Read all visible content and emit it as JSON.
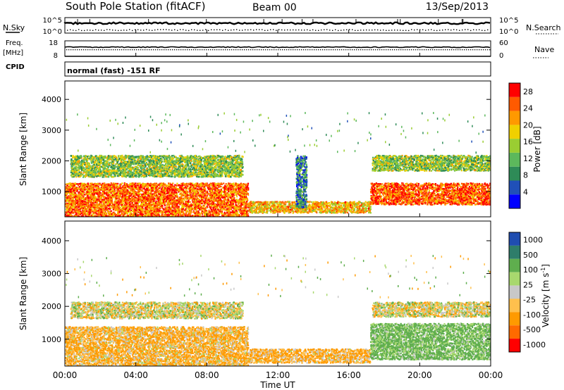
{
  "header": {
    "station": "South Pole Station (fitACF)",
    "beam": "Beam 00",
    "date": "13/Sep/2013"
  },
  "strip_labels": {
    "nsky": "N.Sky",
    "nsky_hi": "10^5",
    "nsky_lo": "10^0",
    "nsearch": "N.Search",
    "nsearch_hi": "10^5",
    "nsearch_lo": "10^0",
    "freq": "Freq.",
    "freq_unit": "[MHz]",
    "freq_hi": "18",
    "freq_lo": "8",
    "nave": "Nave",
    "nave_hi": "60",
    "nave_lo": "0",
    "cpid": "CPID",
    "cpid_text": "normal (fast) -151 RF"
  },
  "colors": {
    "power": [
      "#0000ff",
      "#2050b8",
      "#2e8b57",
      "#5cb85c",
      "#9acd32",
      "#f0d000",
      "#ff9900",
      "#ff5a00",
      "#ff0000"
    ],
    "velocity": [
      "#ff0000",
      "#ff6a00",
      "#ff9a00",
      "#ffc04d",
      "#c8c8c8",
      "#a8d86e",
      "#5fae4e",
      "#2e7d6a",
      "#1f4db0"
    ]
  },
  "chart_data": [
    {
      "type": "heatmap",
      "name": "power",
      "ylabel": "Slant Range [km]",
      "xlabel": "",
      "xlim": [
        "00:00",
        "24:00"
      ],
      "ylim": [
        180,
        4600
      ],
      "x_ticks": [
        "00:00",
        "04:00",
        "08:00",
        "12:00",
        "16:00",
        "20:00",
        "00:00"
      ],
      "y_ticks": [
        1000,
        2000,
        3000,
        4000
      ],
      "colorbar": {
        "label": "Power [dB]",
        "ticks": [
          "4",
          "8",
          "12",
          "16",
          "20",
          "24",
          "28"
        ],
        "range": [
          0,
          30
        ]
      },
      "echo_bands": [
        {
          "t0": 0.0,
          "t1": 10.3,
          "r0": 200,
          "r1": 1300,
          "level": 24
        },
        {
          "t0": 0.3,
          "t1": 10.0,
          "r0": 1500,
          "r1": 2200,
          "level": 14
        },
        {
          "t0": 10.3,
          "t1": 17.2,
          "r0": 330,
          "r1": 700,
          "level": 20
        },
        {
          "t0": 17.2,
          "t1": 24.0,
          "r0": 600,
          "r1": 1300,
          "level": 25
        },
        {
          "t0": 17.3,
          "t1": 24.0,
          "r0": 1700,
          "r1": 2200,
          "level": 14
        },
        {
          "t0": 13.0,
          "t1": 13.6,
          "r0": 500,
          "r1": 2200,
          "level": 8
        }
      ]
    },
    {
      "type": "heatmap",
      "name": "velocity",
      "ylabel": "Slant Range [km]",
      "xlabel": "Time UT",
      "xlim": [
        "00:00",
        "24:00"
      ],
      "ylim": [
        180,
        4600
      ],
      "x_ticks": [
        "00:00",
        "04:00",
        "08:00",
        "12:00",
        "16:00",
        "20:00",
        "00:00"
      ],
      "y_ticks": [
        1000,
        2000,
        3000,
        4000
      ],
      "colorbar": {
        "label": "Velocity [m s^-1]",
        "ticks": [
          "1000",
          "500",
          "100",
          "25",
          "-25",
          "-100",
          "-500",
          "-1000"
        ]
      },
      "echo_bands": [
        {
          "t0": 0.0,
          "t1": 10.3,
          "r0": 200,
          "r1": 1400,
          "level": -100
        },
        {
          "t0": 0.3,
          "t1": 10.0,
          "r0": 1650,
          "r1": 2150,
          "level": 0
        },
        {
          "t0": 10.3,
          "t1": 17.2,
          "r0": 300,
          "r1": 720,
          "level": -120
        },
        {
          "t0": 17.2,
          "t1": 24.0,
          "r0": 400,
          "r1": 1500,
          "level": 150
        },
        {
          "t0": 17.3,
          "t1": 24.0,
          "r0": 1700,
          "r1": 2150,
          "level": 0
        }
      ]
    }
  ]
}
